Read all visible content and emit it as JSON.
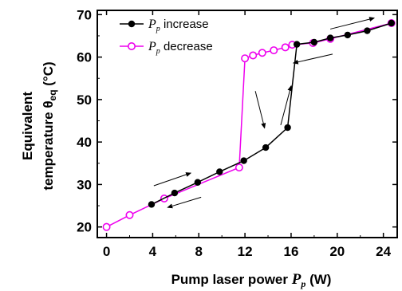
{
  "chart_data": {
    "type": "line",
    "title": "",
    "xlabel": {
      "main": "Pump laser power ",
      "var": "P",
      "sub": "p",
      "unit": " (W)"
    },
    "ylabel": {
      "line1": "Equivalent",
      "line2_main": "temperature θ",
      "line2_sub": "eq",
      "line2_unit": " (°C)"
    },
    "xlim": [
      -0.8,
      25.2
    ],
    "ylim": [
      17.5,
      71
    ],
    "xticks": [
      0,
      4,
      8,
      12,
      16,
      20,
      24
    ],
    "yticks": [
      20,
      30,
      40,
      50,
      60,
      70
    ],
    "legend_position": "top-left",
    "series": [
      {
        "label_var": "P",
        "label_sub": "p",
        "label_text": " increase",
        "color": "#000000",
        "marker": "filled-circle",
        "x": [
          3.9,
          5.9,
          7.9,
          9.8,
          11.9,
          13.8,
          15.7,
          16.5,
          18.0,
          19.4,
          20.9,
          22.6,
          24.7
        ],
        "y": [
          25.3,
          28.0,
          30.5,
          33.0,
          35.6,
          38.7,
          43.4,
          63.0,
          63.5,
          64.5,
          65.2,
          66.2,
          68.0
        ]
      },
      {
        "label_var": "P",
        "label_sub": "p",
        "label_text": " decrease",
        "color": "#ee00ee",
        "marker": "open-circle",
        "x": [
          24.7,
          19.4,
          17.9,
          16.1,
          15.5,
          14.5,
          13.5,
          12.7,
          12.0,
          11.5,
          5.0,
          2.0,
          0.0
        ],
        "y": [
          68.0,
          64.3,
          63.3,
          62.9,
          62.3,
          61.6,
          61.0,
          60.4,
          59.7,
          34.0,
          26.7,
          22.8,
          20.0
        ]
      }
    ]
  }
}
